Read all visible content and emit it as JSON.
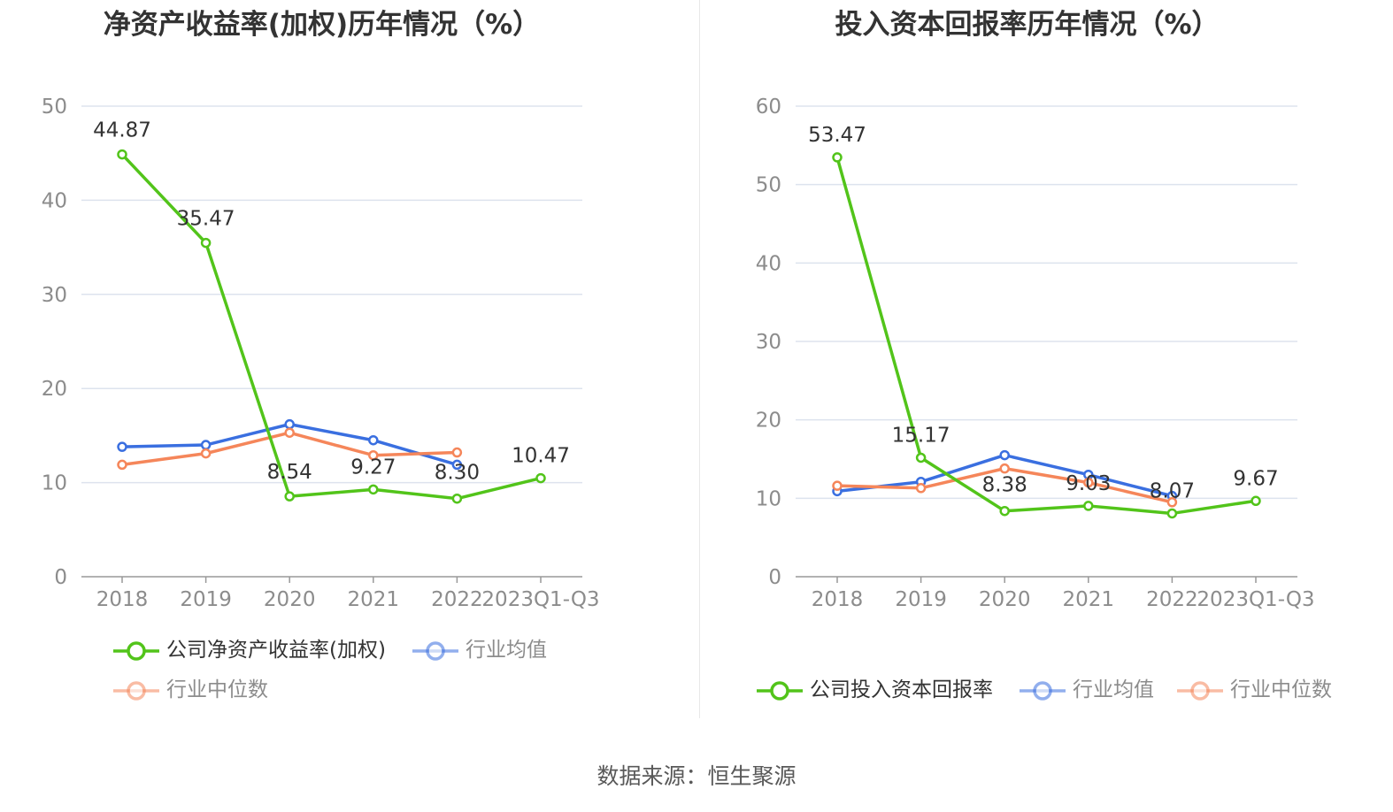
{
  "source_label": "数据来源：恒生聚源",
  "colors": {
    "company": "#52c41a",
    "avg": "#3a6fe0",
    "median": "#f5865a",
    "grid": "#dde3ee",
    "axis": "#999999",
    "tick": "#8c8c8c"
  },
  "chart_data": [
    {
      "type": "line",
      "title": "净资产收益率(加权)历年情况（%）",
      "categories": [
        "2018",
        "2019",
        "2020",
        "2021",
        "2022",
        "2023Q1-Q3"
      ],
      "ylim": [
        0,
        50
      ],
      "yticks": [
        0,
        10,
        20,
        30,
        40,
        50
      ],
      "grid": true,
      "legend_position": "bottom",
      "series": [
        {
          "name": "公司净资产收益率(加权)",
          "color_key": "company",
          "values": [
            44.87,
            35.47,
            8.54,
            9.27,
            8.3,
            10.47
          ],
          "labels": [
            "44.87",
            "35.47",
            "8.54",
            "9.27",
            "8.30",
            "10.47"
          ]
        },
        {
          "name": "行业均值",
          "color_key": "avg",
          "values": [
            13.8,
            14.0,
            16.2,
            14.5,
            11.9,
            null
          ]
        },
        {
          "name": "行业中位数",
          "color_key": "median",
          "values": [
            11.9,
            13.1,
            15.3,
            12.9,
            13.2,
            null
          ]
        }
      ]
    },
    {
      "type": "line",
      "title": "投入资本回报率历年情况（%）",
      "categories": [
        "2018",
        "2019",
        "2020",
        "2021",
        "2022",
        "2023Q1-Q3"
      ],
      "ylim": [
        0,
        60
      ],
      "yticks": [
        0,
        10,
        20,
        30,
        40,
        50,
        60
      ],
      "grid": true,
      "legend_position": "bottom",
      "series": [
        {
          "name": "公司投入资本回报率",
          "color_key": "company",
          "values": [
            53.47,
            15.17,
            8.38,
            9.03,
            8.07,
            9.67
          ],
          "labels": [
            "53.47",
            "15.17",
            "8.38",
            "9.03",
            "8.07",
            "9.67"
          ]
        },
        {
          "name": "行业均值",
          "color_key": "avg",
          "values": [
            10.9,
            12.1,
            15.5,
            13.0,
            10.3,
            null
          ]
        },
        {
          "name": "行业中位数",
          "color_key": "median",
          "values": [
            11.6,
            11.3,
            13.8,
            12.0,
            9.5,
            null
          ]
        }
      ]
    }
  ]
}
